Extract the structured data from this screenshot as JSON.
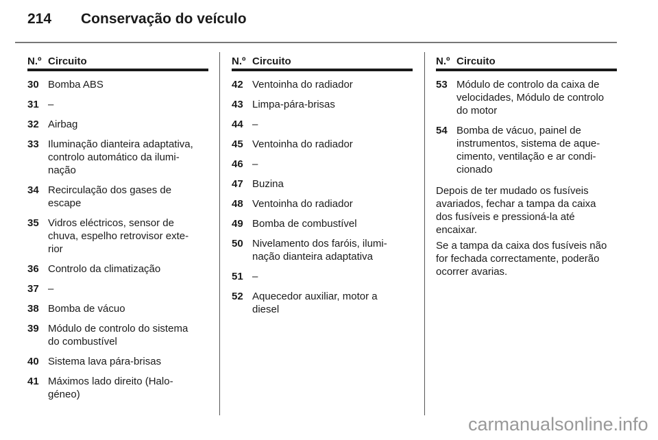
{
  "header": {
    "page_number": "214",
    "title": "Conservação do veículo"
  },
  "columns": [
    {
      "head_no": "N.º",
      "head_circuit": "Circuito",
      "items": [
        {
          "no": "30",
          "text": "Bomba ABS"
        },
        {
          "no": "31",
          "text": "–"
        },
        {
          "no": "32",
          "text": "Airbag"
        },
        {
          "no": "33",
          "text": "Iluminação dianteira adaptativa,\ncontrolo automático da ilumi-\nnação"
        },
        {
          "no": "34",
          "text": "Recirculação dos gases de\nescape"
        },
        {
          "no": "35",
          "text": "Vidros eléctricos, sensor de\nchuva, espelho retrovisor exte-\nrior"
        },
        {
          "no": "36",
          "text": "Controlo da climatização"
        },
        {
          "no": "37",
          "text": "–"
        },
        {
          "no": "38",
          "text": "Bomba de vácuo"
        },
        {
          "no": "39",
          "text": "Módulo de controlo do sistema\ndo combustível"
        },
        {
          "no": "40",
          "text": "Sistema lava pára-brisas"
        },
        {
          "no": "41",
          "text": "Máximos lado direito (Halo-\ngéneo)"
        }
      ]
    },
    {
      "head_no": "N.º",
      "head_circuit": "Circuito",
      "items": [
        {
          "no": "42",
          "text": "Ventoinha do radiador"
        },
        {
          "no": "43",
          "text": "Limpa-pára-brisas"
        },
        {
          "no": "44",
          "text": "–"
        },
        {
          "no": "45",
          "text": "Ventoinha do radiador"
        },
        {
          "no": "46",
          "text": "–"
        },
        {
          "no": "47",
          "text": "Buzina"
        },
        {
          "no": "48",
          "text": "Ventoinha do radiador"
        },
        {
          "no": "49",
          "text": "Bomba de combustível"
        },
        {
          "no": "50",
          "text": "Nivelamento dos faróis, ilumi-\nnação dianteira adaptativa"
        },
        {
          "no": "51",
          "text": "–"
        },
        {
          "no": "52",
          "text": "Aquecedor auxiliar, motor a\ndiesel"
        }
      ]
    },
    {
      "head_no": "N.º",
      "head_circuit": "Circuito",
      "items": [
        {
          "no": "53",
          "text": "Módulo de controlo da caixa de\nvelocidades, Módulo de controlo\ndo motor"
        },
        {
          "no": "54",
          "text": "Bomba de vácuo, painel de\ninstrumentos, sistema de aque-\ncimento, ventilação e ar condi-\ncionado"
        }
      ],
      "paragraphs": [
        "Depois de ter mudado os fusíveis\navariados, fechar a tampa da caixa\ndos fusíveis e pressioná-la até\nencaixar.",
        "Se a tampa da caixa dos fusíveis não\nfor fechada correctamente, poderão\nocorrer avarias."
      ]
    }
  ],
  "watermark": "carmanualsonline.info"
}
